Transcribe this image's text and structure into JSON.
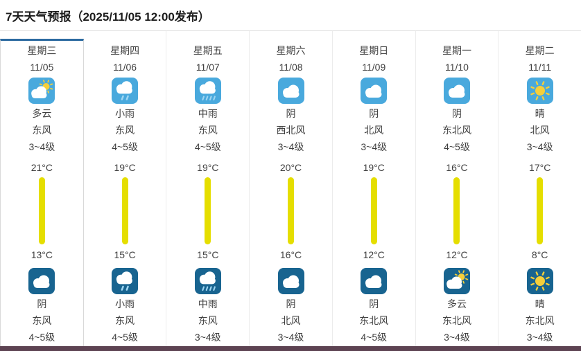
{
  "title": "7天天气预报（2025/11/05 12:00发布）",
  "colors": {
    "accent": "#2c6aa0",
    "day_icon_bg": "#49a9dd",
    "night_icon_bg": "#186490",
    "temp_bar": "#e5de00",
    "sun": "#f6cf3a",
    "cloud": "#ffffff",
    "rain_drop": "#9fd6f2",
    "footer_bar": "#5d4352"
  },
  "days": [
    {
      "week": "星期三",
      "date": "11/05",
      "selected": true,
      "day": {
        "icon": "partly-cloudy",
        "text": "多云",
        "wind": "东风",
        "level": "3~4级"
      },
      "high": "21°C",
      "high_value": 21,
      "low": "13°C",
      "low_value": 13,
      "night": {
        "icon": "overcast",
        "text": "阴",
        "wind": "东风",
        "level": "4~5级"
      }
    },
    {
      "week": "星期四",
      "date": "11/06",
      "selected": false,
      "day": {
        "icon": "light-rain",
        "text": "小雨",
        "wind": "东风",
        "level": "4~5级"
      },
      "high": "19°C",
      "high_value": 19,
      "low": "15°C",
      "low_value": 15,
      "night": {
        "icon": "light-rain",
        "text": "小雨",
        "wind": "东风",
        "level": "4~5级"
      }
    },
    {
      "week": "星期五",
      "date": "11/07",
      "selected": false,
      "day": {
        "icon": "moderate-rain",
        "text": "中雨",
        "wind": "东风",
        "level": "4~5级"
      },
      "high": "19°C",
      "high_value": 19,
      "low": "15°C",
      "low_value": 15,
      "night": {
        "icon": "moderate-rain",
        "text": "中雨",
        "wind": "东风",
        "level": "3~4级"
      }
    },
    {
      "week": "星期六",
      "date": "11/08",
      "selected": false,
      "day": {
        "icon": "overcast",
        "text": "阴",
        "wind": "西北风",
        "level": "3~4级"
      },
      "high": "20°C",
      "high_value": 20,
      "low": "16°C",
      "low_value": 16,
      "night": {
        "icon": "overcast",
        "text": "阴",
        "wind": "北风",
        "level": "3~4级"
      }
    },
    {
      "week": "星期日",
      "date": "11/09",
      "selected": false,
      "day": {
        "icon": "overcast",
        "text": "阴",
        "wind": "北风",
        "level": "3~4级"
      },
      "high": "19°C",
      "high_value": 19,
      "low": "12°C",
      "low_value": 12,
      "night": {
        "icon": "overcast",
        "text": "阴",
        "wind": "东北风",
        "level": "4~5级"
      }
    },
    {
      "week": "星期一",
      "date": "11/10",
      "selected": false,
      "day": {
        "icon": "overcast",
        "text": "阴",
        "wind": "东北风",
        "level": "4~5级"
      },
      "high": "16°C",
      "high_value": 16,
      "low": "12°C",
      "low_value": 12,
      "night": {
        "icon": "partly-cloudy",
        "text": "多云",
        "wind": "东北风",
        "level": "3~4级"
      }
    },
    {
      "week": "星期二",
      "date": "11/11",
      "selected": false,
      "day": {
        "icon": "sunny",
        "text": "晴",
        "wind": "北风",
        "level": "3~4级"
      },
      "high": "17°C",
      "high_value": 17,
      "low": "8°C",
      "low_value": 8,
      "night": {
        "icon": "sunny",
        "text": "晴",
        "wind": "东北风",
        "level": "3~4级"
      }
    }
  ]
}
